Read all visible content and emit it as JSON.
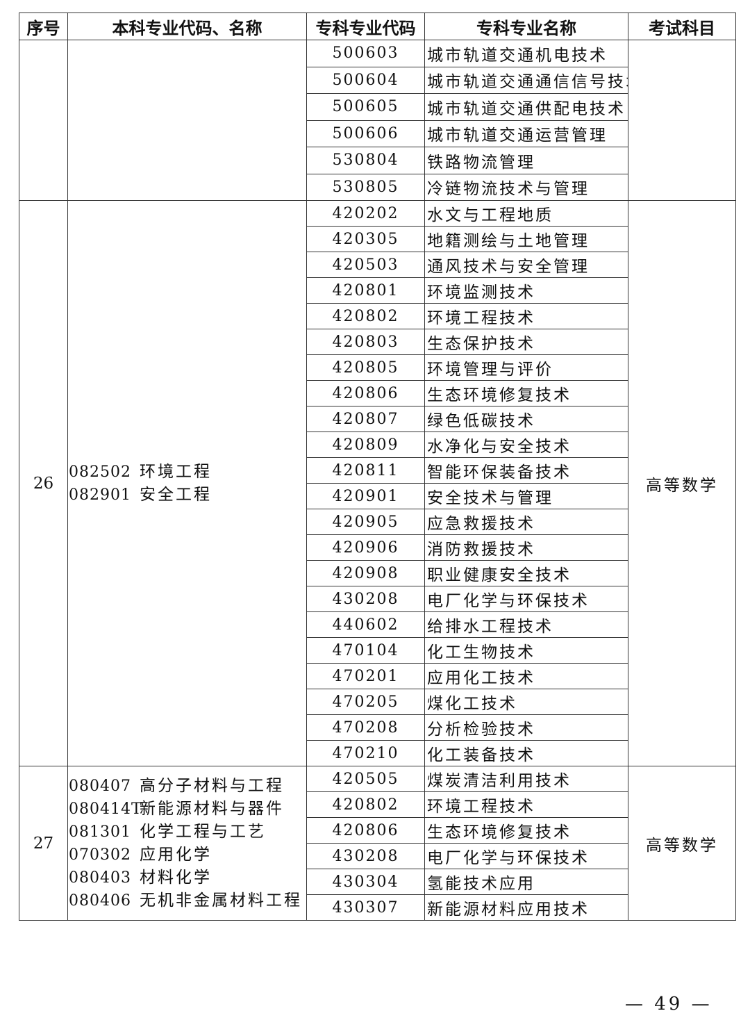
{
  "headers": [
    "序号",
    "本科专业代码、名称",
    "专科专业代码",
    "专科专业名称",
    "考试科目"
  ],
  "groups": [
    {
      "seq": "",
      "bachelor": [],
      "subject": "",
      "rows": [
        {
          "code": "500603",
          "name": "城市轨道交通机电技术"
        },
        {
          "code": "500604",
          "name": "城市轨道交通通信信号技术"
        },
        {
          "code": "500605",
          "name": "城市轨道交通供配电技术"
        },
        {
          "code": "500606",
          "name": "城市轨道交通运营管理"
        },
        {
          "code": "530804",
          "name": "铁路物流管理"
        },
        {
          "code": "530805",
          "name": "冷链物流技术与管理"
        }
      ]
    },
    {
      "seq": "26",
      "bachelor": [
        {
          "code": "082502",
          "name": "环境工程"
        },
        {
          "code": "082901",
          "name": "安全工程"
        }
      ],
      "subject": "高等数学",
      "rows": [
        {
          "code": "420202",
          "name": "水文与工程地质"
        },
        {
          "code": "420305",
          "name": "地籍测绘与土地管理"
        },
        {
          "code": "420503",
          "name": "通风技术与安全管理"
        },
        {
          "code": "420801",
          "name": "环境监测技术"
        },
        {
          "code": "420802",
          "name": "环境工程技术"
        },
        {
          "code": "420803",
          "name": "生态保护技术"
        },
        {
          "code": "420805",
          "name": "环境管理与评价"
        },
        {
          "code": "420806",
          "name": "生态环境修复技术"
        },
        {
          "code": "420807",
          "name": "绿色低碳技术"
        },
        {
          "code": "420809",
          "name": "水净化与安全技术"
        },
        {
          "code": "420811",
          "name": "智能环保装备技术"
        },
        {
          "code": "420901",
          "name": "安全技术与管理"
        },
        {
          "code": "420905",
          "name": "应急救援技术"
        },
        {
          "code": "420906",
          "name": "消防救援技术"
        },
        {
          "code": "420908",
          "name": "职业健康安全技术"
        },
        {
          "code": "430208",
          "name": "电厂化学与环保技术"
        },
        {
          "code": "440602",
          "name": "给排水工程技术"
        },
        {
          "code": "470104",
          "name": "化工生物技术"
        },
        {
          "code": "470201",
          "name": "应用化工技术"
        },
        {
          "code": "470205",
          "name": "煤化工技术"
        },
        {
          "code": "470208",
          "name": "分析检验技术"
        },
        {
          "code": "470210",
          "name": "化工装备技术"
        }
      ]
    },
    {
      "seq": "27",
      "bachelor": [
        {
          "code": "080407",
          "name": "高分子材料与工程"
        },
        {
          "code": "080414T",
          "name": "新能源材料与器件"
        },
        {
          "code": "081301",
          "name": "化学工程与工艺"
        },
        {
          "code": "070302",
          "name": "应用化学"
        },
        {
          "code": "080403",
          "name": "材料化学"
        },
        {
          "code": "080406",
          "name": "无机非金属材料工程"
        }
      ],
      "subject": "高等数学",
      "rows": [
        {
          "code": "420505",
          "name": "煤炭清洁利用技术"
        },
        {
          "code": "420802",
          "name": "环境工程技术"
        },
        {
          "code": "420806",
          "name": "生态环境修复技术"
        },
        {
          "code": "430208",
          "name": "电厂化学与环保技术"
        },
        {
          "code": "430304",
          "name": "氢能技术应用"
        },
        {
          "code": "430307",
          "name": "新能源材料应用技术"
        }
      ]
    }
  ],
  "page_number": "— 49 —"
}
